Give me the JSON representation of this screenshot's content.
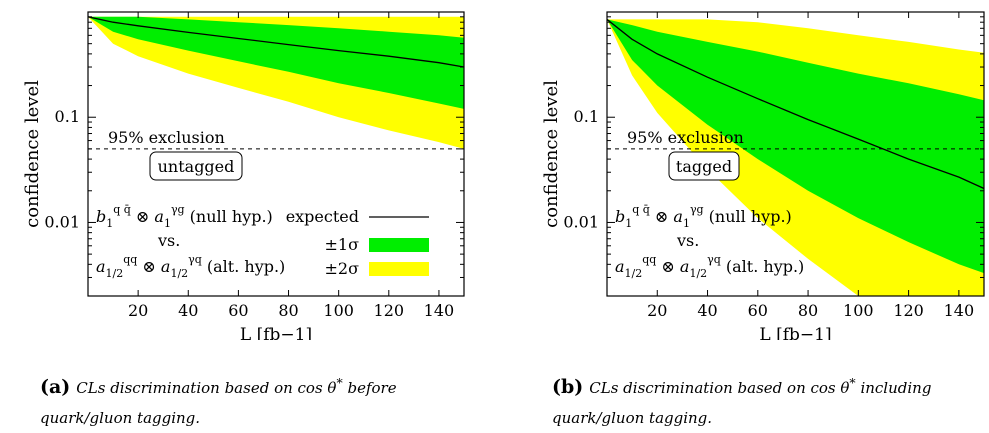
{
  "chart_data": [
    {
      "type": "area",
      "panel": "a",
      "xlabel": "L [fb−1]",
      "ylabel": "confidence level",
      "xticks": [
        20,
        40,
        60,
        80,
        100,
        120,
        140
      ],
      "ytick_labels": [
        "0.01",
        "0.1"
      ],
      "ytick_values": [
        0.01,
        0.1
      ],
      "xlim": [
        0,
        150
      ],
      "ylim": [
        0.002,
        1
      ],
      "yscale": "log",
      "x": [
        0,
        10,
        20,
        40,
        60,
        80,
        100,
        120,
        140,
        150
      ],
      "expected": [
        0.9,
        0.8,
        0.74,
        0.64,
        0.56,
        0.49,
        0.43,
        0.38,
        0.33,
        0.3
      ],
      "sigma1_low": [
        0.9,
        0.65,
        0.55,
        0.43,
        0.34,
        0.27,
        0.21,
        0.17,
        0.135,
        0.12
      ],
      "sigma1_high": [
        0.9,
        0.9,
        0.9,
        0.85,
        0.8,
        0.75,
        0.7,
        0.65,
        0.6,
        0.57
      ],
      "sigma2_low": [
        0.9,
        0.5,
        0.38,
        0.26,
        0.19,
        0.14,
        0.1,
        0.075,
        0.058,
        0.05
      ],
      "sigma2_high": [
        0.9,
        0.9,
        0.9,
        0.9,
        0.9,
        0.9,
        0.9,
        0.9,
        0.9,
        0.9
      ],
      "exclusion_level": 0.05,
      "exclusion_label": "95% exclusion",
      "box_label": "untagged",
      "hypothesis": {
        "null_suffix": " (null hyp.)",
        "vs": "vs.",
        "alt_suffix": " (alt. hyp.)"
      },
      "legend": {
        "expected": "expected",
        "sigma1": "±1σ",
        "sigma2": "±2σ",
        "position": "bottom-right"
      },
      "colors": {
        "sigma1": "#00ee00",
        "sigma2": "#ffff00",
        "expected": "#000000"
      }
    },
    {
      "type": "area",
      "panel": "b",
      "xlabel": "L [fb−1]",
      "ylabel": "confidence level",
      "xticks": [
        20,
        40,
        60,
        80,
        100,
        120,
        140
      ],
      "ytick_labels": [
        "0.01",
        "0.1"
      ],
      "ytick_values": [
        0.01,
        0.1
      ],
      "xlim": [
        0,
        150
      ],
      "ylim": [
        0.002,
        1
      ],
      "yscale": "log",
      "x": [
        0,
        10,
        20,
        40,
        60,
        80,
        100,
        120,
        140,
        150
      ],
      "expected": [
        0.85,
        0.55,
        0.4,
        0.24,
        0.15,
        0.095,
        0.062,
        0.04,
        0.027,
        0.021
      ],
      "sigma1_low": [
        0.85,
        0.35,
        0.2,
        0.085,
        0.04,
        0.02,
        0.011,
        0.0065,
        0.004,
        0.0033
      ],
      "sigma1_high": [
        0.85,
        0.75,
        0.65,
        0.52,
        0.42,
        0.33,
        0.26,
        0.21,
        0.165,
        0.145
      ],
      "sigma2_low": [
        0.85,
        0.25,
        0.11,
        0.032,
        0.011,
        0.0045,
        0.002,
        0.002,
        0.002,
        0.002
      ],
      "sigma2_high": [
        0.85,
        0.85,
        0.85,
        0.85,
        0.8,
        0.7,
        0.6,
        0.52,
        0.44,
        0.41
      ],
      "exclusion_level": 0.05,
      "exclusion_label": "95% exclusion",
      "box_label": "tagged",
      "hypothesis": {
        "null_suffix": " (null hyp.)",
        "vs": "vs.",
        "alt_suffix": " (alt. hyp.)"
      },
      "legend": null,
      "colors": {
        "sigma1": "#00ee00",
        "sigma2": "#ffff00",
        "expected": "#000000"
      }
    }
  ],
  "captions": {
    "a": {
      "tag": "(a)",
      "text_before": "CLs discrimination based on cos θ",
      "sup": "*",
      "text_after": " before quark/gluon tagging."
    },
    "b": {
      "tag": "(b)",
      "text_before": "CLs discrimination based on  cos θ",
      "sup": "*",
      "text_after": " including quark/gluon tagging."
    }
  }
}
